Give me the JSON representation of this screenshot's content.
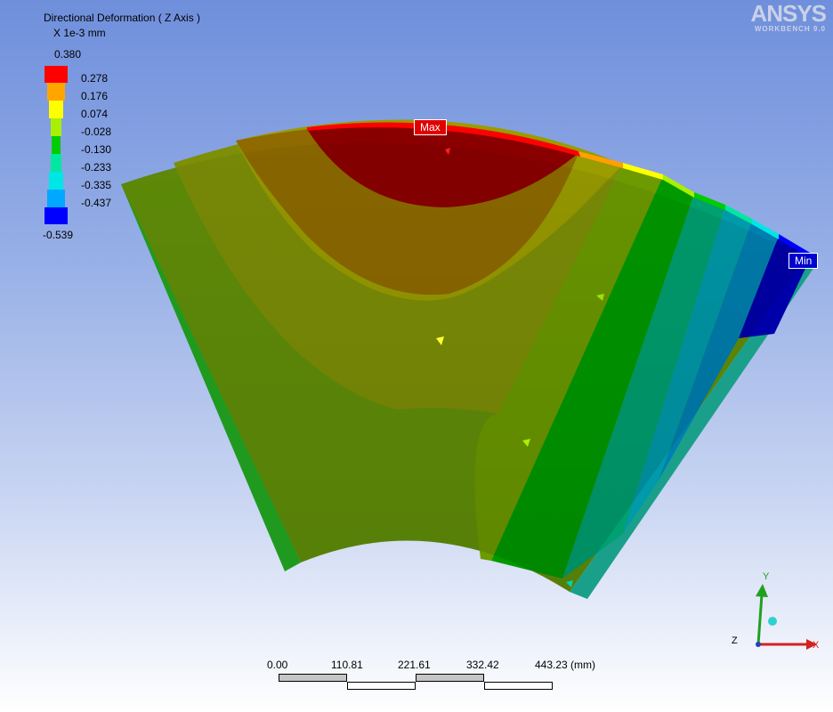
{
  "legend": {
    "title": "Directional Deformation ( Z Axis )",
    "units": "X 1e-3 mm",
    "max": "0.380",
    "min": "-0.539",
    "values": [
      "0.278",
      "0.176",
      "0.074",
      "-0.028",
      "-0.130",
      "-0.233",
      "-0.335",
      "-0.437"
    ],
    "colors": [
      "#ff0000",
      "#ffa500",
      "#ffff00",
      "#a8f000",
      "#00cc00",
      "#00e8a0",
      "#00e6e6",
      "#00a8ff",
      "#0000ff"
    ]
  },
  "logo": {
    "brand": "ANSYS",
    "product": "WORKBENCH 9.0"
  },
  "probes": {
    "max_label": "Max",
    "min_label": "Min"
  },
  "scale": {
    "labels": [
      "0.00",
      "110.81",
      "221.61",
      "332.42",
      "443.23 (mm)"
    ]
  },
  "triad": {
    "x": "X",
    "y": "Y",
    "z": "Z"
  }
}
